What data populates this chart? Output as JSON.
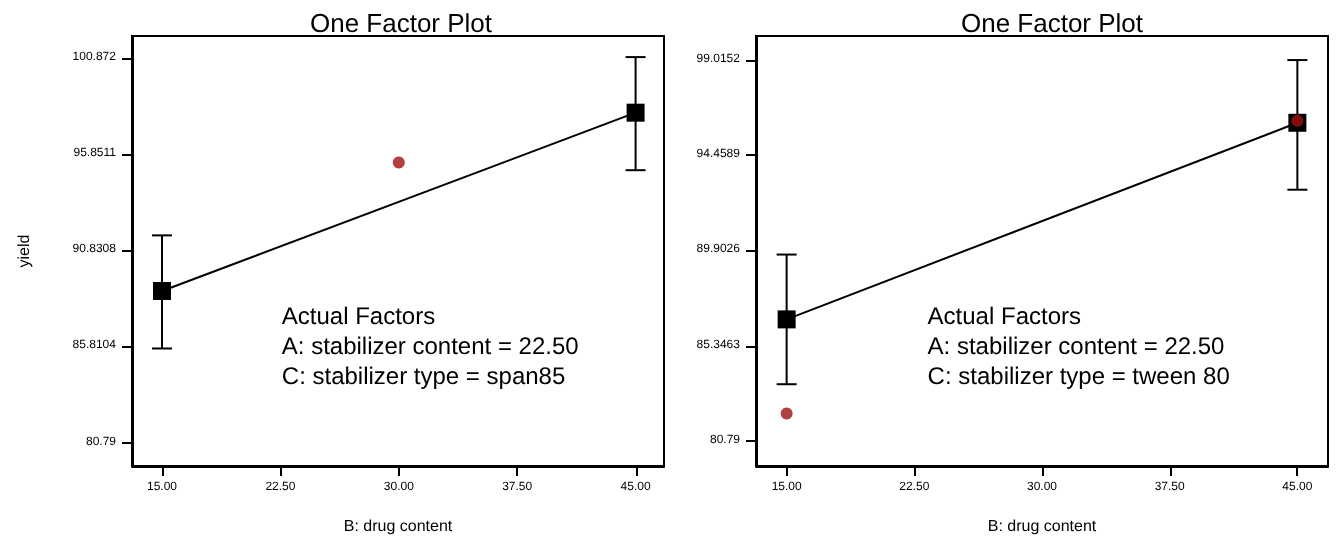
{
  "chart_data": [
    {
      "type": "line",
      "title": "One Factor Plot",
      "xlabel": "B: drug content",
      "ylabel": "yield",
      "xlim": [
        13.1,
        46.8
      ],
      "xticks": [
        {
          "value": 15,
          "label": "15.00"
        },
        {
          "value": 22.5,
          "label": "22.50"
        },
        {
          "value": 30,
          "label": "30.00"
        },
        {
          "value": 37.5,
          "label": "37.50"
        },
        {
          "value": 45,
          "label": "45.00"
        }
      ],
      "ylim": [
        79.57,
        102.0
      ],
      "yticks": [
        80.79,
        85.8104,
        90.8308,
        95.8511,
        100.872
      ],
      "grid": false,
      "series": [
        {
          "x": [
            15,
            45
          ],
          "values": [
            88.7,
            98.0
          ],
          "errors": [
            [
              85.7,
              91.6
            ],
            [
              95.0,
              100.9
            ]
          ],
          "color": "#000000",
          "marker": "square"
        },
        {
          "type": "scatter",
          "x": [
            30
          ],
          "values": [
            95.4
          ],
          "color": "#a01010",
          "marker": "circle"
        }
      ],
      "annotations": [
        "Actual Factors",
        "A: stabilizer content = 22.50",
        "C: stabilizer type = span85"
      ]
    },
    {
      "type": "line",
      "title": "One Factor Plot",
      "xlabel": "B: drug content",
      "xlim": [
        13.2,
        46.8
      ],
      "xticks": [
        {
          "value": 15,
          "label": "15.00"
        },
        {
          "value": 22.5,
          "label": "22.50"
        },
        {
          "value": 30,
          "label": "30.00"
        },
        {
          "value": 37.5,
          "label": "37.50"
        },
        {
          "value": 45,
          "label": "45.00"
        }
      ],
      "ylim": [
        79.59,
        100.15
      ],
      "yticks": [
        80.79,
        85.3463,
        89.9026,
        94.4589,
        99.0152
      ],
      "grid": false,
      "series": [
        {
          "x": [
            15,
            45
          ],
          "values": [
            86.6,
            96.0
          ],
          "errors": [
            [
              83.5,
              89.7
            ],
            [
              92.8,
              99.0
            ]
          ],
          "color": "#000000",
          "marker": "square"
        },
        {
          "type": "scatter",
          "x": [
            15,
            45
          ],
          "values": [
            82.1,
            96.1
          ],
          "color": "#a01010",
          "marker": "circle"
        }
      ],
      "annotations": [
        "Actual Factors",
        "A: stabilizer content = 22.50",
        "C: stabilizer type = tween 80"
      ]
    }
  ]
}
